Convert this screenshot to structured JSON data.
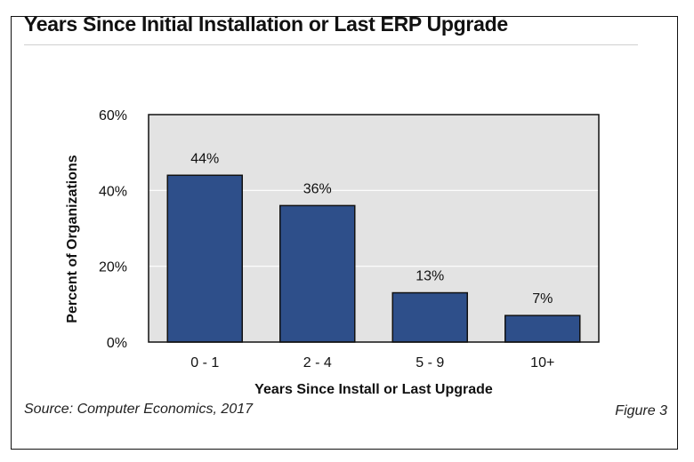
{
  "header": {
    "title": "Years Since Initial Installation or Last ERP Upgrade"
  },
  "footer": {
    "source": "Source: Computer Economics, 2017",
    "figure": "Figure 3"
  },
  "colors": {
    "bar": "#2e4f8a",
    "bar_stroke": "#111111",
    "plot_bg": "#e3e3e3",
    "gridline": "#ffffff"
  },
  "chart_data": {
    "type": "bar",
    "categories": [
      "0 - 1",
      "2 - 4",
      "5 - 9",
      "10+"
    ],
    "values": [
      44,
      36,
      13,
      7
    ],
    "data_labels": [
      "44%",
      "36%",
      "13%",
      "7%"
    ],
    "xlabel": "Years Since Install or Last Upgrade",
    "ylabel": "Percent of Organizations",
    "ylim": [
      0,
      60
    ],
    "yticks": [
      0,
      20,
      40,
      60
    ],
    "ytick_labels": [
      "0%",
      "20%",
      "40%",
      "60%"
    ],
    "grid": true,
    "legend": "none"
  }
}
